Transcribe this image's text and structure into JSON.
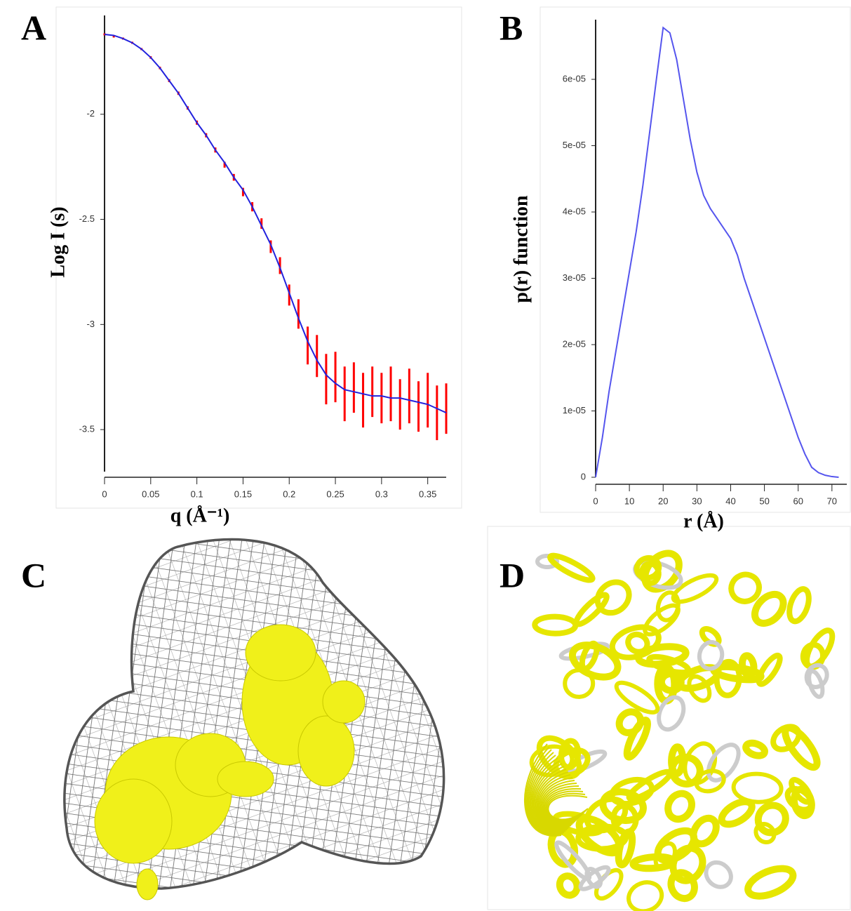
{
  "panels": [
    "A",
    "B",
    "C",
    "D"
  ],
  "chart_data": [
    {
      "type": "line",
      "xlabel": "q (Å⁻¹)",
      "ylabel": "Log I (s)",
      "xlim": [
        0,
        0.37
      ],
      "ylim": [
        -3.7,
        -1.53
      ],
      "xticks": [
        0,
        0.05,
        0.1,
        0.15,
        0.2,
        0.25,
        0.3,
        0.35
      ],
      "yticks": [
        -2,
        -2.5,
        -3,
        -3.5
      ],
      "x": [
        0,
        0.01,
        0.02,
        0.03,
        0.04,
        0.05,
        0.06,
        0.07,
        0.08,
        0.09,
        0.1,
        0.11,
        0.12,
        0.13,
        0.14,
        0.15,
        0.16,
        0.17,
        0.18,
        0.19,
        0.2,
        0.21,
        0.22,
        0.23,
        0.24,
        0.25,
        0.26,
        0.27,
        0.28,
        0.29,
        0.3,
        0.31,
        0.32,
        0.33,
        0.34,
        0.35,
        0.36,
        0.37
      ],
      "series": [
        {
          "color": "#ff0000",
          "values": [
            -1.62,
            -1.63,
            -1.64,
            -1.66,
            -1.69,
            -1.73,
            -1.78,
            -1.84,
            -1.9,
            -1.97,
            -2.04,
            -2.1,
            -2.17,
            -2.24,
            -2.3,
            -2.37,
            -2.44,
            -2.52,
            -2.63,
            -2.72,
            -2.86,
            -2.95,
            -3.1,
            -3.15,
            -3.26,
            -3.25,
            -3.33,
            -3.3,
            -3.36,
            -3.32,
            -3.35,
            -3.33,
            -3.38,
            -3.34,
            -3.39,
            -3.36,
            -3.42,
            -3.4
          ],
          "errors": [
            0.005,
            0.005,
            0.005,
            0.005,
            0.005,
            0.006,
            0.006,
            0.007,
            0.008,
            0.008,
            0.01,
            0.01,
            0.012,
            0.014,
            0.016,
            0.02,
            0.022,
            0.025,
            0.03,
            0.04,
            0.05,
            0.07,
            0.09,
            0.1,
            0.12,
            0.12,
            0.13,
            0.12,
            0.13,
            0.12,
            0.12,
            0.13,
            0.12,
            0.13,
            0.12,
            0.13,
            0.13,
            0.12
          ]
        },
        {
          "color": "#2222dd",
          "values": [
            -1.62,
            -1.625,
            -1.64,
            -1.66,
            -1.69,
            -1.73,
            -1.78,
            -1.84,
            -1.9,
            -1.97,
            -2.04,
            -2.1,
            -2.17,
            -2.23,
            -2.3,
            -2.36,
            -2.44,
            -2.53,
            -2.62,
            -2.73,
            -2.85,
            -2.97,
            -3.08,
            -3.17,
            -3.24,
            -3.28,
            -3.31,
            -3.32,
            -3.33,
            -3.34,
            -3.34,
            -3.35,
            -3.35,
            -3.36,
            -3.37,
            -3.38,
            -3.4,
            -3.42
          ]
        }
      ]
    },
    {
      "type": "line",
      "xlabel": "r (Å)",
      "ylabel": "p(r) function",
      "xlim": [
        0,
        74.4
      ],
      "ylim": [
        0,
        6.9e-05
      ],
      "xticks": [
        0,
        10,
        20,
        30,
        40,
        50,
        60,
        70
      ],
      "yticks": [
        0,
        {
          "value": 1e-05,
          "label": "1e-05"
        },
        {
          "value": 2e-05,
          "label": "2e-05"
        },
        {
          "value": 3e-05,
          "label": "3e-05"
        },
        {
          "value": 4e-05,
          "label": "4e-05"
        },
        {
          "value": 5e-05,
          "label": "5e-05"
        },
        {
          "value": 6e-05,
          "label": "6e-05"
        }
      ],
      "x": [
        0,
        2,
        4,
        6,
        8,
        10,
        12,
        14,
        16,
        18,
        20,
        22,
        24,
        26,
        28,
        30,
        32,
        34,
        36,
        38,
        40,
        42,
        44,
        46,
        48,
        50,
        52,
        54,
        56,
        58,
        60,
        62,
        64,
        66,
        68,
        70,
        72
      ],
      "series": [
        {
          "color": "#5555ee",
          "values": [
            0,
            6e-06,
            1.3e-05,
            1.9e-05,
            2.5e-05,
            3.1e-05,
            3.7e-05,
            4.4e-05,
            5.2e-05,
            6e-05,
            6.78e-05,
            6.7e-05,
            6.3e-05,
            5.7e-05,
            5.1e-05,
            4.6e-05,
            4.25e-05,
            4.05e-05,
            3.9e-05,
            3.75e-05,
            3.6e-05,
            3.35e-05,
            3e-05,
            2.7e-05,
            2.4e-05,
            2.1e-05,
            1.8e-05,
            1.5e-05,
            1.2e-05,
            9e-06,
            6e-06,
            3.5e-06,
            1.5e-06,
            7e-07,
            3e-07,
            1e-07,
            0
          ]
        }
      ]
    }
  ]
}
